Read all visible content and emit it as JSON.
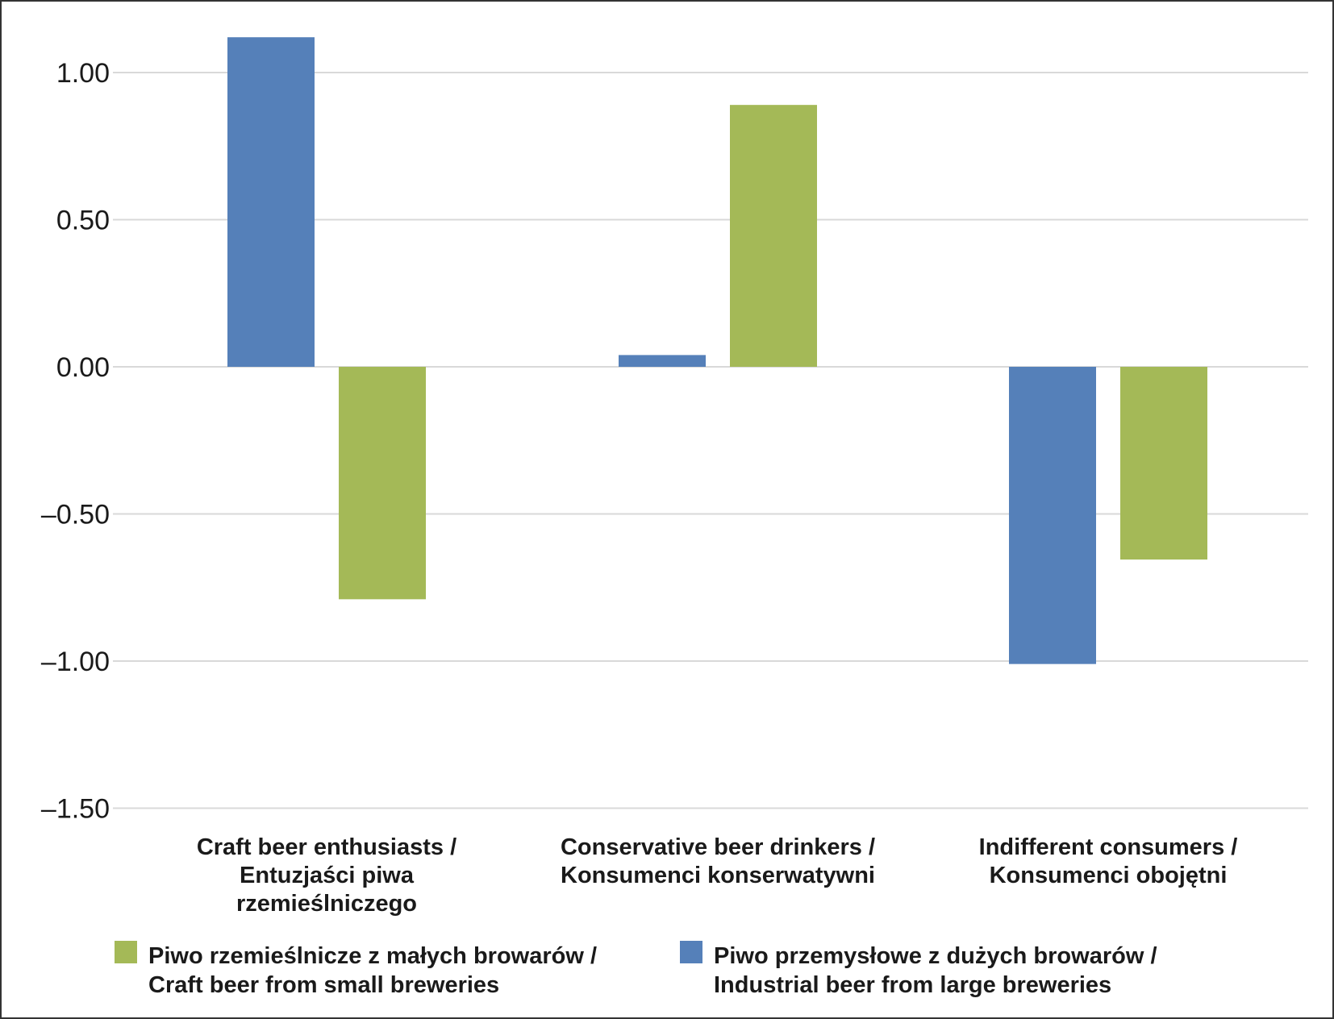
{
  "chart_data": {
    "type": "bar",
    "title": "",
    "xlabel": "",
    "ylabel": "",
    "ylim": [
      -1.5,
      1.25
    ],
    "yticks": [
      1.0,
      0.5,
      0.0,
      -0.5,
      -1.0,
      -1.5
    ],
    "ytick_labels": [
      "1.00",
      "0.50",
      "0.00",
      "–0.50",
      "–1.00",
      "–1.50"
    ],
    "grid": true,
    "legend_position": "bottom",
    "categories": [
      [
        "Craft beer enthusiasts /",
        "Entuzjaści piwa",
        "rzemieślniczego"
      ],
      [
        "Conservative beer drinkers /",
        "Konsumenci konserwatywni"
      ],
      [
        "Indifferent consumers /",
        "Konsumenci obojętni"
      ]
    ],
    "series": [
      {
        "name": "Piwo przemysłowe z dużych browarów / Industrial beer from large breweries",
        "legend_lines": [
          "Piwo przemysłowe z dużych browarów /",
          "Industrial beer from large breweries"
        ],
        "color": "#5580b9",
        "values": [
          1.12,
          0.04,
          -1.01
        ]
      },
      {
        "name": "Piwo rzemieślnicze z małych browarów / Craft beer from small breweries",
        "legend_lines": [
          "Piwo rzemieślnicze z małych browarów /",
          "Craft beer from small breweries"
        ],
        "color": "#a4b957",
        "values": [
          -0.79,
          0.89,
          -0.655
        ]
      }
    ],
    "legend_order": [
      1,
      0
    ],
    "gridline_color": "#d9d9d9"
  }
}
